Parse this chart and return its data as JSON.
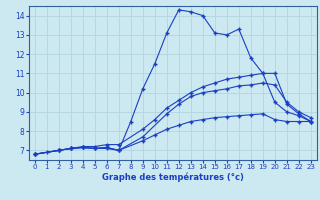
{
  "xlabel": "Graphe des températures (°c)",
  "bg_color": "#cce8f0",
  "grid_color": "#b0d4e0",
  "line_color": "#1a3fc4",
  "xlim": [
    -0.5,
    23.5
  ],
  "ylim": [
    6.5,
    14.5
  ],
  "xticks": [
    0,
    1,
    2,
    3,
    4,
    5,
    6,
    7,
    8,
    9,
    10,
    11,
    12,
    13,
    14,
    15,
    16,
    17,
    18,
    19,
    20,
    21,
    22,
    23
  ],
  "yticks": [
    7,
    8,
    9,
    10,
    11,
    12,
    13,
    14
  ],
  "line1_x": [
    0,
    1,
    2,
    3,
    4,
    5,
    6,
    7,
    8,
    9,
    10,
    11,
    12,
    13,
    14,
    15,
    16,
    17,
    18,
    19,
    20,
    21,
    22,
    23
  ],
  "line1_y": [
    6.8,
    6.9,
    7.0,
    7.1,
    7.15,
    7.1,
    7.15,
    7.0,
    8.5,
    10.2,
    11.5,
    13.1,
    14.3,
    14.2,
    14.0,
    13.1,
    13.0,
    13.3,
    11.8,
    11.0,
    9.5,
    9.0,
    8.8,
    8.5
  ],
  "line2_x": [
    0,
    2,
    3,
    4,
    5,
    6,
    7,
    9,
    10,
    11,
    12,
    13,
    14,
    15,
    16,
    17,
    18,
    19,
    20,
    21,
    22,
    23
  ],
  "line2_y": [
    6.8,
    7.0,
    7.1,
    7.2,
    7.2,
    7.3,
    7.3,
    8.1,
    8.6,
    9.2,
    9.6,
    10.0,
    10.3,
    10.5,
    10.7,
    10.8,
    10.9,
    11.0,
    11.0,
    9.4,
    8.9,
    8.5
  ],
  "line3_x": [
    0,
    2,
    3,
    4,
    5,
    6,
    7,
    9,
    10,
    11,
    12,
    13,
    14,
    15,
    16,
    17,
    18,
    19,
    20,
    21,
    22,
    23
  ],
  "line3_y": [
    6.8,
    7.0,
    7.1,
    7.15,
    7.1,
    7.1,
    7.0,
    7.5,
    7.8,
    8.1,
    8.3,
    8.5,
    8.6,
    8.7,
    8.75,
    8.8,
    8.85,
    8.9,
    8.6,
    8.5,
    8.5,
    8.5
  ],
  "line4_x": [
    0,
    2,
    3,
    4,
    5,
    6,
    7,
    9,
    11,
    12,
    13,
    14,
    15,
    16,
    17,
    18,
    19,
    20,
    21,
    22,
    23
  ],
  "line4_y": [
    6.8,
    7.0,
    7.1,
    7.15,
    7.1,
    7.15,
    7.0,
    7.7,
    8.9,
    9.4,
    9.8,
    10.0,
    10.1,
    10.2,
    10.35,
    10.4,
    10.5,
    10.4,
    9.5,
    9.0,
    8.7
  ]
}
